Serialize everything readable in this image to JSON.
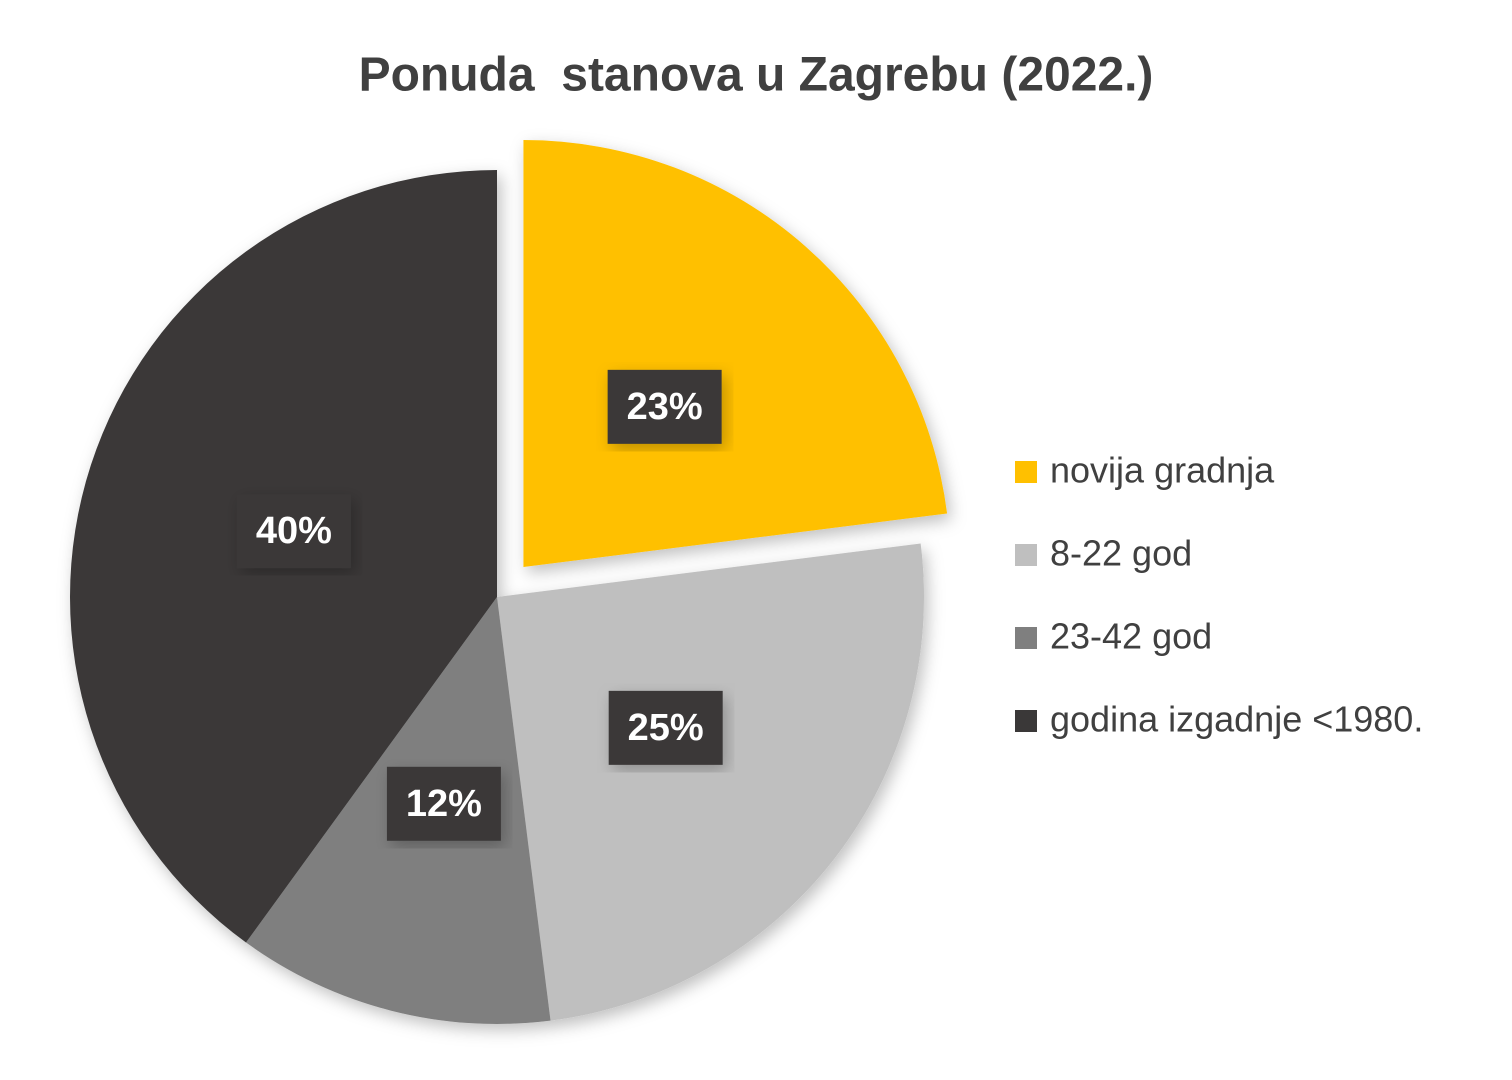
{
  "chart_data": {
    "type": "pie",
    "title": "Ponuda  stanova u Zagrebu (2022.)",
    "categories": [
      "novija gradnja",
      "8-22 god",
      "23-42 god",
      "godina izgadnje <1980."
    ],
    "values": [
      23,
      25,
      12,
      40
    ],
    "value_labels": [
      "23%",
      "25%",
      "12%",
      "40%"
    ],
    "colors": [
      "#FFC000",
      "#BFBFBF",
      "#7F7F7F",
      "#3A3838"
    ],
    "exploded": [
      true,
      false,
      false,
      false
    ],
    "legend": "right"
  }
}
